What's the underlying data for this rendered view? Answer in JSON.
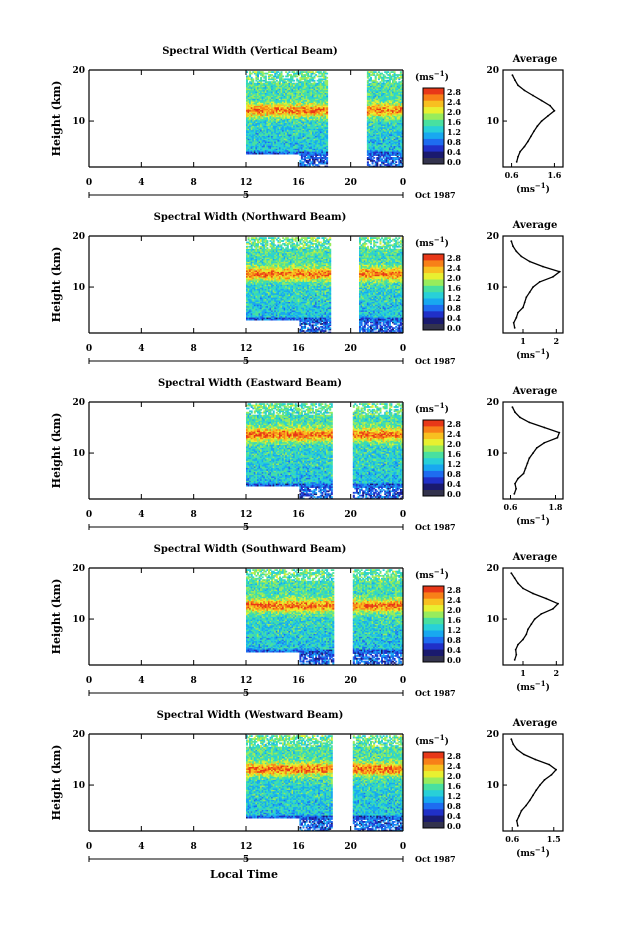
{
  "colors": {
    "scale": [
      "#1a1a6e",
      "#2030c8",
      "#1e6cf0",
      "#18a8f0",
      "#28d0d8",
      "#48e0a0",
      "#98ec5c",
      "#e8f030",
      "#f8c020",
      "#f88018",
      "#e83818"
    ],
    "low_band": "#33334d"
  },
  "x_label": "Local Time",
  "colorbar": {
    "unit_label": "(ms⁻¹)",
    "ticks": [
      "2.8",
      "2.4",
      "2.0",
      "1.6",
      "1.2",
      "0.8",
      "0.4",
      "0.0"
    ]
  },
  "average": {
    "title": "Average",
    "unit_label": "(ms⁻¹)"
  },
  "chart_data": [
    {
      "type": "heatmap",
      "title": "Spectral Width (Vertical Beam)",
      "xlabel": "Local Time",
      "ylabel": "Height (km)",
      "x_ticks": [
        "0",
        "4",
        "8",
        "12",
        "16",
        "20",
        "0"
      ],
      "y_ticks": [
        "20",
        "10"
      ],
      "date_label": "Oct 1987",
      "day_marker": "5",
      "colorbar_label": "(ms⁻¹)",
      "colorbar_ticks": [
        "2.8",
        "2.4",
        "2.0",
        "1.6",
        "1.2",
        "0.8",
        "0.4",
        "0.0"
      ],
      "data_coverage": {
        "start_hour": 12,
        "end_hour": 24,
        "gap_hours": [
          18.2,
          21.2
        ],
        "lower_cutoff_hours": [
          12,
          16
        ],
        "lower_cutoff_km": 3.5
      },
      "peak_width_height_km": 12,
      "profile": {
        "title": "Average",
        "xlabel": "(ms⁻¹)",
        "x_ticks": [
          "0.6",
          "1.6"
        ],
        "xlim": [
          0.4,
          1.8
        ],
        "y_ticks": [
          "20",
          "10"
        ],
        "ylim": [
          1,
          20
        ],
        "height_km": [
          2,
          3,
          4,
          5,
          6,
          7,
          8,
          9,
          10,
          11,
          12,
          13,
          14,
          15,
          16,
          17,
          18,
          19
        ],
        "width_ms": [
          0.72,
          0.75,
          0.8,
          0.9,
          0.98,
          1.05,
          1.12,
          1.2,
          1.3,
          1.45,
          1.6,
          1.5,
          1.3,
          1.1,
          0.9,
          0.75,
          0.68,
          0.62
        ]
      }
    },
    {
      "type": "heatmap",
      "title": "Spectral Width (Northward Beam)",
      "xlabel": "Local Time",
      "ylabel": "Height (km)",
      "x_ticks": [
        "0",
        "4",
        "8",
        "12",
        "16",
        "20",
        "0"
      ],
      "y_ticks": [
        "20",
        "10"
      ],
      "date_label": "Oct 1987",
      "day_marker": "5",
      "colorbar_label": "(ms⁻¹)",
      "colorbar_ticks": [
        "2.8",
        "2.4",
        "2.0",
        "1.6",
        "1.2",
        "0.8",
        "0.4",
        "0.0"
      ],
      "data_coverage": {
        "start_hour": 12,
        "end_hour": 24,
        "gap_hours": [
          18.4,
          20.6
        ],
        "lower_cutoff_hours": [
          12,
          16
        ],
        "lower_cutoff_km": 3.5
      },
      "peak_width_height_km": 12.5,
      "profile": {
        "title": "Average",
        "xlabel": "(ms⁻¹)",
        "x_ticks": [
          "1",
          "2"
        ],
        "xlim": [
          0.4,
          2.2
        ],
        "y_ticks": [
          "20",
          "10"
        ],
        "ylim": [
          1,
          20
        ],
        "height_km": [
          2,
          3,
          4,
          5,
          6,
          7,
          8,
          9,
          10,
          11,
          12,
          13,
          14,
          15,
          16,
          17,
          18,
          19
        ],
        "width_ms": [
          0.75,
          0.72,
          0.8,
          0.85,
          1.0,
          1.05,
          1.1,
          1.2,
          1.3,
          1.5,
          1.9,
          2.1,
          1.6,
          1.2,
          0.95,
          0.8,
          0.7,
          0.65
        ]
      }
    },
    {
      "type": "heatmap",
      "title": "Spectral Width (Eastward Beam)",
      "xlabel": "Local Time",
      "ylabel": "Height (km)",
      "x_ticks": [
        "0",
        "4",
        "8",
        "12",
        "16",
        "20",
        "0"
      ],
      "y_ticks": [
        "20",
        "10"
      ],
      "date_label": "Oct 1987",
      "day_marker": "5",
      "colorbar_label": "(ms⁻¹)",
      "colorbar_ticks": [
        "2.8",
        "2.4",
        "2.0",
        "1.6",
        "1.2",
        "0.8",
        "0.4",
        "0.0"
      ],
      "data_coverage": {
        "start_hour": 12,
        "end_hour": 24,
        "gap_hours": [
          18.5,
          20.1
        ],
        "lower_cutoff_hours": [
          12,
          16
        ],
        "lower_cutoff_km": 3.5
      },
      "peak_width_height_km": 13.5,
      "profile": {
        "title": "Average",
        "xlabel": "(ms⁻¹)",
        "x_ticks": [
          "0.6",
          "1.8"
        ],
        "xlim": [
          0.4,
          2.0
        ],
        "y_ticks": [
          "20",
          "10"
        ],
        "ylim": [
          1,
          20
        ],
        "height_km": [
          2,
          3,
          4,
          5,
          6,
          7,
          8,
          9,
          10,
          11,
          12,
          13,
          14,
          15,
          16,
          17,
          18,
          19
        ],
        "width_ms": [
          0.7,
          0.75,
          0.72,
          0.8,
          0.95,
          1.0,
          1.05,
          1.1,
          1.2,
          1.3,
          1.5,
          1.85,
          1.9,
          1.5,
          1.1,
          0.85,
          0.72,
          0.65
        ]
      }
    },
    {
      "type": "heatmap",
      "title": "Spectral Width (Southward Beam)",
      "xlabel": "Local Time",
      "ylabel": "Height (km)",
      "x_ticks": [
        "0",
        "4",
        "8",
        "12",
        "16",
        "20",
        "0"
      ],
      "y_ticks": [
        "20",
        "10"
      ],
      "date_label": "Oct 1987",
      "day_marker": "5",
      "colorbar_label": "(ms⁻¹)",
      "colorbar_ticks": [
        "2.8",
        "2.4",
        "2.0",
        "1.6",
        "1.2",
        "0.8",
        "0.4",
        "0.0"
      ],
      "data_coverage": {
        "start_hour": 12,
        "end_hour": 24,
        "gap_hours": [
          18.6,
          20.1
        ],
        "lower_cutoff_hours": [
          12,
          16
        ],
        "lower_cutoff_km": 3.5
      },
      "peak_width_height_km": 12.5,
      "profile": {
        "title": "Average",
        "xlabel": "(ms⁻¹)",
        "x_ticks": [
          "1",
          "2"
        ],
        "xlim": [
          0.4,
          2.2
        ],
        "y_ticks": [
          "20",
          "10"
        ],
        "ylim": [
          1,
          20
        ],
        "height_km": [
          2,
          3,
          4,
          5,
          6,
          7,
          8,
          9,
          10,
          11,
          12,
          13,
          14,
          15,
          16,
          17,
          18,
          19
        ],
        "width_ms": [
          0.75,
          0.8,
          0.78,
          0.85,
          1.0,
          1.1,
          1.15,
          1.25,
          1.35,
          1.55,
          1.9,
          2.05,
          1.7,
          1.3,
          1.0,
          0.85,
          0.75,
          0.65
        ]
      }
    },
    {
      "type": "heatmap",
      "title": "Spectral Width (Westward Beam)",
      "xlabel": "Local Time",
      "ylabel": "Height (km)",
      "x_ticks": [
        "0",
        "4",
        "8",
        "12",
        "16",
        "20",
        "0"
      ],
      "y_ticks": [
        "20",
        "10"
      ],
      "date_label": "Oct 1987",
      "day_marker": "5",
      "colorbar_label": "(ms⁻¹)",
      "colorbar_ticks": [
        "2.8",
        "2.4",
        "2.0",
        "1.6",
        "1.2",
        "0.8",
        "0.4",
        "0.0"
      ],
      "data_coverage": {
        "start_hour": 12,
        "end_hour": 24,
        "gap_hours": [
          18.5,
          20.1
        ],
        "lower_cutoff_hours": [
          12,
          16
        ],
        "lower_cutoff_km": 3.5
      },
      "peak_width_height_km": 13,
      "profile": {
        "title": "Average",
        "xlabel": "(ms⁻¹)",
        "x_ticks": [
          "0.6",
          "1.5"
        ],
        "xlim": [
          0.4,
          1.7
        ],
        "y_ticks": [
          "20",
          "10"
        ],
        "ylim": [
          1,
          20
        ],
        "height_km": [
          2,
          3,
          4,
          5,
          6,
          7,
          8,
          9,
          10,
          11,
          12,
          13,
          14,
          15,
          16,
          17,
          18,
          19
        ],
        "width_ms": [
          0.72,
          0.7,
          0.75,
          0.8,
          0.9,
          0.98,
          1.05,
          1.12,
          1.2,
          1.3,
          1.45,
          1.55,
          1.4,
          1.1,
          0.85,
          0.7,
          0.62,
          0.58
        ]
      }
    }
  ]
}
